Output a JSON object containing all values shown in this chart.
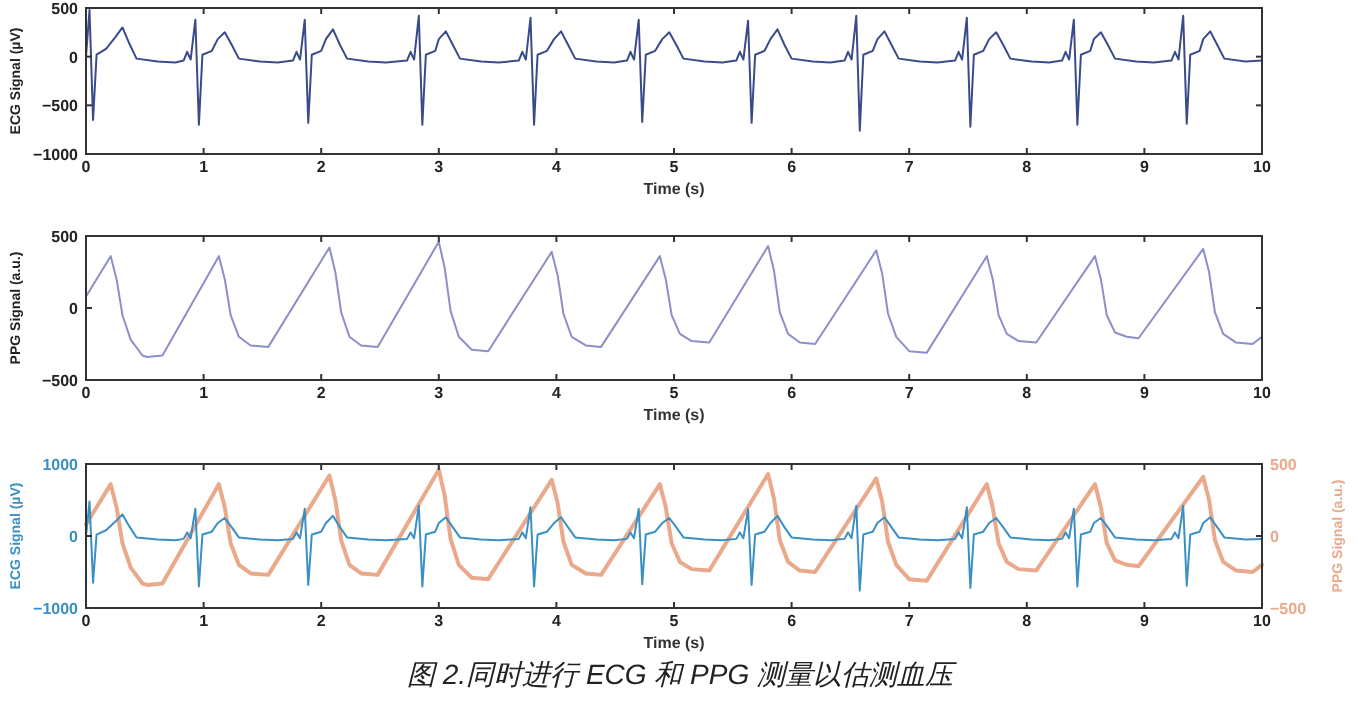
{
  "chart_data": [
    {
      "type": "line",
      "xlabel": "Time (s)",
      "ylabel": "ECG Signal (µV)",
      "xlim": [
        0,
        10
      ],
      "xticks": [
        0,
        1,
        2,
        3,
        4,
        5,
        6,
        7,
        8,
        9,
        10
      ],
      "ylim": [
        -1000,
        500
      ],
      "yticks": [
        -1000,
        -500,
        0,
        500
      ],
      "series": [
        {
          "color": "#3b4a8a",
          "x": [
            0,
            0.03,
            0.06,
            0.09,
            0.17,
            0.25,
            0.31,
            0.37,
            0.43,
            0.61,
            0.76,
            0.83,
            0.86,
            0.89,
            0.93,
            0.96,
            0.99,
            1.07,
            1.12,
            1.18,
            1.24,
            1.3,
            1.48,
            1.63,
            1.76,
            1.79,
            1.82,
            1.86,
            1.89,
            1.92,
            2.0,
            2.04,
            2.1,
            2.16,
            2.22,
            2.4,
            2.55,
            2.73,
            2.76,
            2.79,
            2.83,
            2.86,
            2.89,
            2.97,
            3.0,
            3.06,
            3.12,
            3.18,
            3.36,
            3.51,
            3.68,
            3.71,
            3.74,
            3.78,
            3.81,
            3.84,
            3.92,
            3.98,
            4.04,
            4.1,
            4.16,
            4.34,
            4.49,
            4.6,
            4.63,
            4.66,
            4.7,
            4.73,
            4.76,
            4.84,
            4.9,
            4.96,
            5.02,
            5.08,
            5.26,
            5.41,
            5.53,
            5.56,
            5.59,
            5.63,
            5.66,
            5.69,
            5.77,
            5.82,
            5.88,
            5.94,
            6.0,
            6.18,
            6.33,
            6.45,
            6.48,
            6.51,
            6.55,
            6.58,
            6.61,
            6.69,
            6.73,
            6.79,
            6.85,
            6.91,
            7.09,
            7.24,
            7.39,
            7.42,
            7.45,
            7.49,
            7.52,
            7.55,
            7.63,
            7.68,
            7.74,
            7.8,
            7.86,
            8.04,
            8.19,
            8.3,
            8.33,
            8.36,
            8.4,
            8.43,
            8.46,
            8.54,
            8.57,
            8.63,
            8.69,
            8.75,
            8.93,
            9.08,
            9.23,
            9.26,
            9.29,
            9.33,
            9.36,
            9.39,
            9.47,
            9.5,
            9.56,
            9.62,
            9.68,
            9.86,
            10
          ],
          "values": [
            0,
            480,
            -650,
            20,
            80,
            200,
            300,
            130,
            -20,
            -50,
            -60,
            -40,
            50,
            -30,
            380,
            -700,
            20,
            60,
            180,
            250,
            120,
            -20,
            -50,
            -60,
            -40,
            50,
            -30,
            380,
            -680,
            20,
            60,
            180,
            280,
            120,
            -20,
            -50,
            -60,
            -40,
            50,
            -30,
            420,
            -700,
            20,
            60,
            180,
            260,
            120,
            -20,
            -50,
            -60,
            -40,
            50,
            -30,
            400,
            -700,
            20,
            60,
            180,
            260,
            120,
            -20,
            -50,
            -60,
            -40,
            50,
            -30,
            380,
            -670,
            20,
            60,
            180,
            250,
            120,
            -20,
            -50,
            -60,
            -40,
            50,
            -30,
            370,
            -680,
            20,
            60,
            180,
            280,
            120,
            -20,
            -50,
            -60,
            -40,
            50,
            -30,
            420,
            -760,
            20,
            60,
            180,
            260,
            120,
            -20,
            -50,
            -60,
            -40,
            50,
            -30,
            400,
            -720,
            20,
            60,
            180,
            250,
            120,
            -20,
            -50,
            -60,
            -40,
            50,
            -30,
            380,
            -700,
            20,
            60,
            180,
            250,
            120,
            -20,
            -50,
            -60,
            -40,
            50,
            -30,
            420,
            -690,
            20,
            60,
            180,
            260,
            120,
            -20,
            -50,
            -40
          ]
        }
      ]
    },
    {
      "type": "line",
      "xlabel": "Time (s)",
      "ylabel": "PPG Signal (a.u.)",
      "xlim": [
        0,
        10
      ],
      "xticks": [
        0,
        1,
        2,
        3,
        4,
        5,
        6,
        7,
        8,
        9,
        10
      ],
      "ylim": [
        -500,
        500
      ],
      "yticks": [
        -500,
        0,
        500
      ],
      "series": [
        {
          "color": "#8c8fc8",
          "x": [
            0,
            0.21,
            0.26,
            0.31,
            0.38,
            0.48,
            0.52,
            0.65,
            1.13,
            1.18,
            1.23,
            1.3,
            1.4,
            1.55,
            2.07,
            2.12,
            2.17,
            2.24,
            2.34,
            2.48,
            3.0,
            3.05,
            3.1,
            3.17,
            3.28,
            3.42,
            3.96,
            4.01,
            4.06,
            4.13,
            4.25,
            4.38,
            4.88,
            4.93,
            4.98,
            5.05,
            5.15,
            5.3,
            5.8,
            5.85,
            5.9,
            5.97,
            6.07,
            6.2,
            6.72,
            6.77,
            6.82,
            6.89,
            7.0,
            7.15,
            7.66,
            7.71,
            7.76,
            7.83,
            7.93,
            8.08,
            8.58,
            8.63,
            8.68,
            8.75,
            8.85,
            8.95,
            9.5,
            9.55,
            9.6,
            9.67,
            9.78,
            9.92,
            10
          ],
          "values": [
            80,
            360,
            200,
            -50,
            -220,
            -330,
            -340,
            -330,
            360,
            200,
            -50,
            -200,
            -260,
            -270,
            420,
            250,
            -30,
            -200,
            -260,
            -270,
            460,
            280,
            -20,
            -200,
            -290,
            -300,
            390,
            230,
            -40,
            -200,
            -260,
            -270,
            360,
            200,
            -50,
            -180,
            -230,
            -240,
            430,
            260,
            -30,
            -180,
            -240,
            -250,
            400,
            240,
            -40,
            -200,
            -300,
            -310,
            360,
            200,
            -50,
            -180,
            -230,
            -240,
            360,
            200,
            -50,
            -170,
            -200,
            -210,
            410,
            250,
            -30,
            -180,
            -240,
            -250,
            -200
          ]
        }
      ]
    },
    {
      "type": "line",
      "xlabel": "Time (s)",
      "ylabel": "ECG Signal (µV)",
      "y2label": "PPG Signal (a.u.)",
      "xlim": [
        0,
        10
      ],
      "xticks": [
        0,
        1,
        2,
        3,
        4,
        5,
        6,
        7,
        8,
        9,
        10
      ],
      "ylim": [
        -1000,
        1000
      ],
      "yticks": [
        -1000,
        0,
        1000
      ],
      "y2lim": [
        -500,
        500
      ],
      "y2ticks": [
        -500,
        0,
        500
      ],
      "series": [
        {
          "color": "#e9a98a",
          "axis": "y2",
          "x": [
            0,
            0.21,
            0.26,
            0.31,
            0.38,
            0.48,
            0.52,
            0.65,
            1.13,
            1.18,
            1.23,
            1.3,
            1.4,
            1.55,
            2.07,
            2.12,
            2.17,
            2.24,
            2.34,
            2.48,
            3.0,
            3.05,
            3.1,
            3.17,
            3.28,
            3.42,
            3.96,
            4.01,
            4.06,
            4.13,
            4.25,
            4.38,
            4.88,
            4.93,
            4.98,
            5.05,
            5.15,
            5.3,
            5.8,
            5.85,
            5.9,
            5.97,
            6.07,
            6.2,
            6.72,
            6.77,
            6.82,
            6.89,
            7.0,
            7.15,
            7.66,
            7.71,
            7.76,
            7.83,
            7.93,
            8.08,
            8.58,
            8.63,
            8.68,
            8.75,
            8.85,
            8.95,
            9.5,
            9.55,
            9.6,
            9.67,
            9.78,
            9.92,
            10
          ],
          "values": [
            80,
            360,
            200,
            -50,
            -220,
            -330,
            -340,
            -330,
            360,
            200,
            -50,
            -200,
            -260,
            -270,
            420,
            250,
            -30,
            -200,
            -260,
            -270,
            460,
            280,
            -20,
            -200,
            -290,
            -300,
            390,
            230,
            -40,
            -200,
            -260,
            -270,
            360,
            200,
            -50,
            -180,
            -230,
            -240,
            430,
            260,
            -30,
            -180,
            -240,
            -250,
            400,
            240,
            -40,
            -200,
            -300,
            -310,
            360,
            200,
            -50,
            -180,
            -230,
            -240,
            360,
            200,
            -50,
            -170,
            -200,
            -210,
            410,
            250,
            -30,
            -180,
            -240,
            -250,
            -200
          ]
        },
        {
          "color": "#3a8fc4",
          "x": [
            0,
            0.03,
            0.06,
            0.09,
            0.17,
            0.25,
            0.31,
            0.37,
            0.43,
            0.61,
            0.76,
            0.83,
            0.86,
            0.89,
            0.93,
            0.96,
            0.99,
            1.07,
            1.12,
            1.18,
            1.24,
            1.3,
            1.48,
            1.63,
            1.76,
            1.79,
            1.82,
            1.86,
            1.89,
            1.92,
            2.0,
            2.04,
            2.1,
            2.16,
            2.22,
            2.4,
            2.55,
            2.73,
            2.76,
            2.79,
            2.83,
            2.86,
            2.89,
            2.97,
            3.0,
            3.06,
            3.12,
            3.18,
            3.36,
            3.51,
            3.68,
            3.71,
            3.74,
            3.78,
            3.81,
            3.84,
            3.92,
            3.98,
            4.04,
            4.1,
            4.16,
            4.34,
            4.49,
            4.6,
            4.63,
            4.66,
            4.7,
            4.73,
            4.76,
            4.84,
            4.9,
            4.96,
            5.02,
            5.08,
            5.26,
            5.41,
            5.53,
            5.56,
            5.59,
            5.63,
            5.66,
            5.69,
            5.77,
            5.82,
            5.88,
            5.94,
            6.0,
            6.18,
            6.33,
            6.45,
            6.48,
            6.51,
            6.55,
            6.58,
            6.61,
            6.69,
            6.73,
            6.79,
            6.85,
            6.91,
            7.09,
            7.24,
            7.39,
            7.42,
            7.45,
            7.49,
            7.52,
            7.55,
            7.63,
            7.68,
            7.74,
            7.8,
            7.86,
            8.04,
            8.19,
            8.3,
            8.33,
            8.36,
            8.4,
            8.43,
            8.46,
            8.54,
            8.57,
            8.63,
            8.69,
            8.75,
            8.93,
            9.08,
            9.23,
            9.26,
            9.29,
            9.33,
            9.36,
            9.39,
            9.47,
            9.5,
            9.56,
            9.62,
            9.68,
            9.86,
            10
          ],
          "values": [
            0,
            480,
            -650,
            20,
            80,
            200,
            300,
            130,
            -20,
            -50,
            -60,
            -40,
            50,
            -30,
            380,
            -700,
            20,
            60,
            180,
            250,
            120,
            -20,
            -50,
            -60,
            -40,
            50,
            -30,
            380,
            -680,
            20,
            60,
            180,
            280,
            120,
            -20,
            -50,
            -60,
            -40,
            50,
            -30,
            420,
            -700,
            20,
            60,
            180,
            260,
            120,
            -20,
            -50,
            -60,
            -40,
            50,
            -30,
            400,
            -700,
            20,
            60,
            180,
            260,
            120,
            -20,
            -50,
            -60,
            -40,
            50,
            -30,
            380,
            -670,
            20,
            60,
            180,
            250,
            120,
            -20,
            -50,
            -60,
            -40,
            50,
            -30,
            370,
            -680,
            20,
            60,
            180,
            280,
            120,
            -20,
            -50,
            -60,
            -40,
            50,
            -30,
            420,
            -760,
            20,
            60,
            180,
            260,
            120,
            -20,
            -50,
            -60,
            -40,
            50,
            -30,
            400,
            -720,
            20,
            60,
            180,
            250,
            120,
            -20,
            -50,
            -60,
            -40,
            50,
            -30,
            380,
            -700,
            20,
            60,
            180,
            250,
            120,
            -20,
            -50,
            -60,
            -40,
            50,
            -30,
            420,
            -690,
            20,
            60,
            180,
            260,
            120,
            -20,
            -50,
            -40
          ]
        }
      ],
      "annotations": [
        "图 2.同时进行 ECG 和 PPG 测量以估测血压"
      ]
    }
  ]
}
